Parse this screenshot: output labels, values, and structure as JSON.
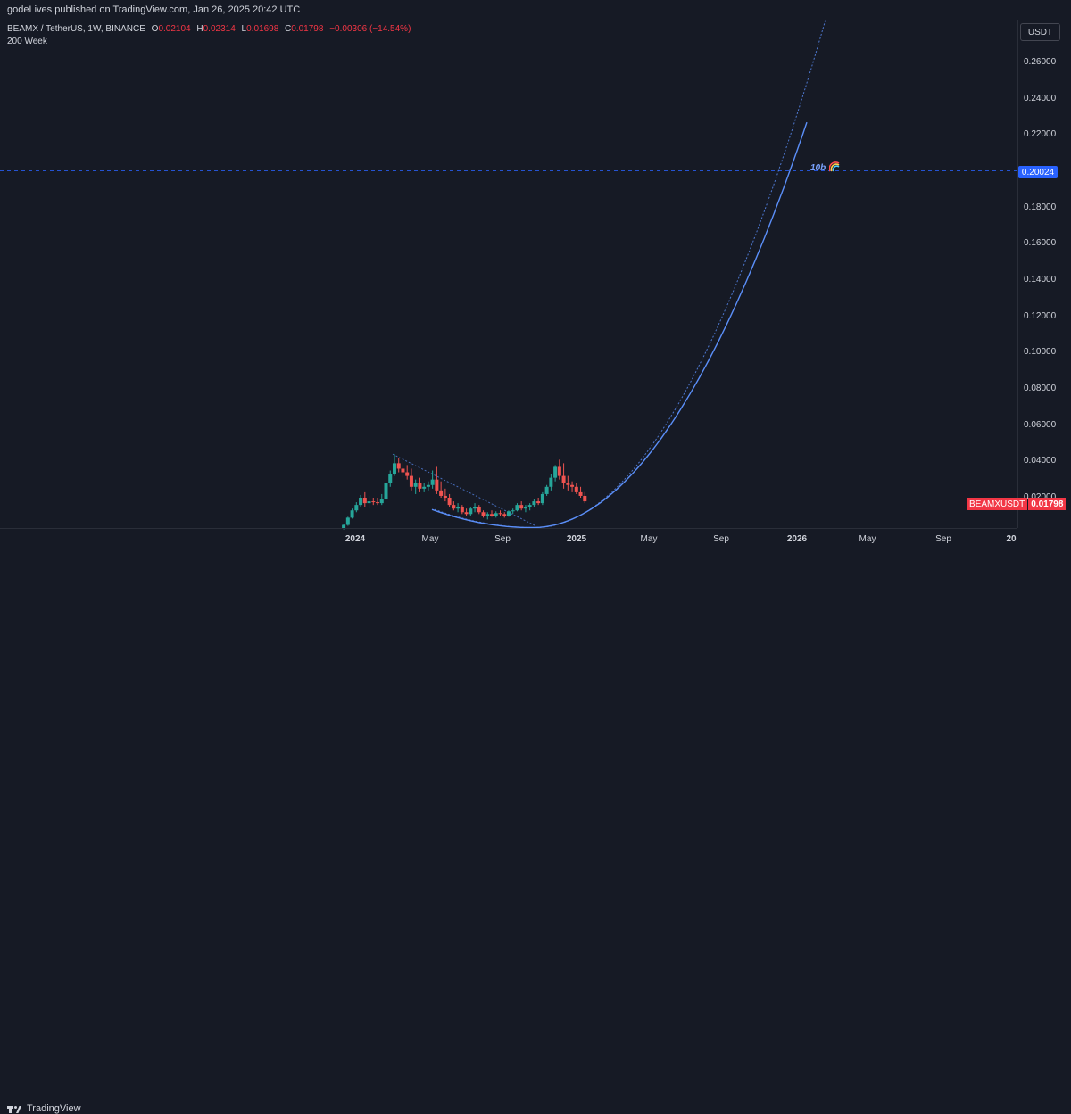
{
  "header": {
    "published": "godeLives published on TradingView.com, Jan 26, 2025 20:42 UTC"
  },
  "legend": {
    "symbol": "BEAMX / TetherUS, 1W, BINANCE",
    "open_label": "O",
    "open": "0.02104",
    "high_label": "H",
    "high": "0.02314",
    "low_label": "L",
    "low": "0.01698",
    "close_label": "C",
    "close": "0.01798",
    "change": "−0.00306 (−14.54%)",
    "indicator": "200 Week"
  },
  "axis": {
    "currency": "USDT",
    "y_ticks": [
      "0.26000",
      "0.24000",
      "0.22000",
      "0.20000",
      "0.18000",
      "0.16000",
      "0.14000",
      "0.12000",
      "0.10000",
      "0.08000",
      "0.06000",
      "0.04000",
      "0.02000"
    ],
    "x_ticks": [
      {
        "label": "2024",
        "bold": true
      },
      {
        "label": "May",
        "bold": false
      },
      {
        "label": "Sep",
        "bold": false
      },
      {
        "label": "2025",
        "bold": true
      },
      {
        "label": "May",
        "bold": false
      },
      {
        "label": "Sep",
        "bold": false
      },
      {
        "label": "2026",
        "bold": true
      },
      {
        "label": "May",
        "bold": false
      },
      {
        "label": "Sep",
        "bold": false
      },
      {
        "label": "20",
        "bold": true
      }
    ]
  },
  "annotations": {
    "target_price": "0.20024",
    "target_label": "10b",
    "target_icon": "rainbow-icon",
    "symbol_badge": "BEAMXUSDT",
    "last_price": "0.01798"
  },
  "footer": {
    "brand": "TradingView",
    "brand_icon": "tradingview-logo-icon"
  },
  "colors": {
    "up": "#26a69a",
    "down": "#ef5350",
    "curve": "#5b8ff9",
    "background": "#161a25",
    "price_line": "#2962ff"
  },
  "chart_data": {
    "type": "candlestick",
    "symbol": "BEAMXUSDT",
    "interval": "1W",
    "ylim": [
      0,
      0.28
    ],
    "last": {
      "open": 0.02104,
      "high": 0.02314,
      "low": 0.01698,
      "close": 0.01798
    },
    "horizontal_line": 0.20024,
    "candles_approx": [
      {
        "t": "2023-12-10",
        "o": 0.003,
        "h": 0.0055,
        "l": 0.0025,
        "c": 0.005
      },
      {
        "t": "2023-12-17",
        "o": 0.005,
        "h": 0.0095,
        "l": 0.0045,
        "c": 0.009
      },
      {
        "t": "2023-12-24",
        "o": 0.009,
        "h": 0.014,
        "l": 0.0085,
        "c": 0.013
      },
      {
        "t": "2023-12-31",
        "o": 0.013,
        "h": 0.0175,
        "l": 0.012,
        "c": 0.016
      },
      {
        "t": "2024-01-07",
        "o": 0.016,
        "h": 0.0215,
        "l": 0.015,
        "c": 0.02
      },
      {
        "t": "2024-01-14",
        "o": 0.02,
        "h": 0.023,
        "l": 0.015,
        "c": 0.017
      },
      {
        "t": "2024-01-21",
        "o": 0.017,
        "h": 0.021,
        "l": 0.014,
        "c": 0.018
      },
      {
        "t": "2024-01-28",
        "o": 0.018,
        "h": 0.02,
        "l": 0.016,
        "c": 0.0175
      },
      {
        "t": "2024-02-04",
        "o": 0.0175,
        "h": 0.02,
        "l": 0.016,
        "c": 0.017
      },
      {
        "t": "2024-02-11",
        "o": 0.017,
        "h": 0.022,
        "l": 0.016,
        "c": 0.019
      },
      {
        "t": "2024-02-18",
        "o": 0.019,
        "h": 0.03,
        "l": 0.018,
        "c": 0.028
      },
      {
        "t": "2024-02-25",
        "o": 0.028,
        "h": 0.035,
        "l": 0.026,
        "c": 0.033
      },
      {
        "t": "2024-03-03",
        "o": 0.033,
        "h": 0.044,
        "l": 0.032,
        "c": 0.039
      },
      {
        "t": "2024-03-10",
        "o": 0.039,
        "h": 0.042,
        "l": 0.034,
        "c": 0.036
      },
      {
        "t": "2024-03-17",
        "o": 0.036,
        "h": 0.04,
        "l": 0.031,
        "c": 0.034
      },
      {
        "t": "2024-03-24",
        "o": 0.034,
        "h": 0.038,
        "l": 0.03,
        "c": 0.032
      },
      {
        "t": "2024-03-31",
        "o": 0.032,
        "h": 0.036,
        "l": 0.024,
        "c": 0.026
      },
      {
        "t": "2024-04-07",
        "o": 0.026,
        "h": 0.03,
        "l": 0.022,
        "c": 0.028
      },
      {
        "t": "2024-04-14",
        "o": 0.028,
        "h": 0.031,
        "l": 0.023,
        "c": 0.025
      },
      {
        "t": "2024-04-21",
        "o": 0.025,
        "h": 0.028,
        "l": 0.023,
        "c": 0.026
      },
      {
        "t": "2024-04-28",
        "o": 0.026,
        "h": 0.029,
        "l": 0.024,
        "c": 0.027
      },
      {
        "t": "2024-05-05",
        "o": 0.027,
        "h": 0.035,
        "l": 0.025,
        "c": 0.03
      },
      {
        "t": "2024-05-12",
        "o": 0.03,
        "h": 0.037,
        "l": 0.022,
        "c": 0.024
      },
      {
        "t": "2024-05-19",
        "o": 0.024,
        "h": 0.029,
        "l": 0.02,
        "c": 0.021
      },
      {
        "t": "2024-05-26",
        "o": 0.021,
        "h": 0.025,
        "l": 0.018,
        "c": 0.02
      },
      {
        "t": "2024-06-02",
        "o": 0.02,
        "h": 0.022,
        "l": 0.015,
        "c": 0.016
      },
      {
        "t": "2024-06-09",
        "o": 0.016,
        "h": 0.018,
        "l": 0.013,
        "c": 0.014
      },
      {
        "t": "2024-06-16",
        "o": 0.014,
        "h": 0.017,
        "l": 0.012,
        "c": 0.015
      },
      {
        "t": "2024-06-23",
        "o": 0.015,
        "h": 0.016,
        "l": 0.011,
        "c": 0.012
      },
      {
        "t": "2024-06-30",
        "o": 0.012,
        "h": 0.014,
        "l": 0.01,
        "c": 0.011
      },
      {
        "t": "2024-07-07",
        "o": 0.011,
        "h": 0.015,
        "l": 0.01,
        "c": 0.014
      },
      {
        "t": "2024-07-14",
        "o": 0.014,
        "h": 0.017,
        "l": 0.012,
        "c": 0.015
      },
      {
        "t": "2024-07-21",
        "o": 0.015,
        "h": 0.016,
        "l": 0.011,
        "c": 0.012
      },
      {
        "t": "2024-07-28",
        "o": 0.012,
        "h": 0.013,
        "l": 0.009,
        "c": 0.01
      },
      {
        "t": "2024-08-04",
        "o": 0.01,
        "h": 0.012,
        "l": 0.008,
        "c": 0.011
      },
      {
        "t": "2024-08-11",
        "o": 0.011,
        "h": 0.013,
        "l": 0.0095,
        "c": 0.01
      },
      {
        "t": "2024-08-18",
        "o": 0.01,
        "h": 0.0125,
        "l": 0.009,
        "c": 0.0115
      },
      {
        "t": "2024-08-25",
        "o": 0.0115,
        "h": 0.013,
        "l": 0.01,
        "c": 0.011
      },
      {
        "t": "2024-09-01",
        "o": 0.011,
        "h": 0.012,
        "l": 0.009,
        "c": 0.01
      },
      {
        "t": "2024-09-08",
        "o": 0.01,
        "h": 0.013,
        "l": 0.0095,
        "c": 0.0125
      },
      {
        "t": "2024-09-15",
        "o": 0.0125,
        "h": 0.014,
        "l": 0.011,
        "c": 0.013
      },
      {
        "t": "2024-09-22",
        "o": 0.013,
        "h": 0.017,
        "l": 0.0125,
        "c": 0.016
      },
      {
        "t": "2024-09-29",
        "o": 0.016,
        "h": 0.018,
        "l": 0.013,
        "c": 0.014
      },
      {
        "t": "2024-10-06",
        "o": 0.014,
        "h": 0.016,
        "l": 0.012,
        "c": 0.015
      },
      {
        "t": "2024-10-13",
        "o": 0.015,
        "h": 0.017,
        "l": 0.013,
        "c": 0.016
      },
      {
        "t": "2024-10-20",
        "o": 0.016,
        "h": 0.019,
        "l": 0.015,
        "c": 0.018
      },
      {
        "t": "2024-10-27",
        "o": 0.018,
        "h": 0.02,
        "l": 0.016,
        "c": 0.017
      },
      {
        "t": "2024-11-03",
        "o": 0.017,
        "h": 0.023,
        "l": 0.016,
        "c": 0.022
      },
      {
        "t": "2024-11-10",
        "o": 0.022,
        "h": 0.027,
        "l": 0.021,
        "c": 0.026
      },
      {
        "t": "2024-11-17",
        "o": 0.026,
        "h": 0.033,
        "l": 0.024,
        "c": 0.031
      },
      {
        "t": "2024-11-24",
        "o": 0.031,
        "h": 0.038,
        "l": 0.029,
        "c": 0.037
      },
      {
        "t": "2024-12-01",
        "o": 0.037,
        "h": 0.041,
        "l": 0.03,
        "c": 0.032
      },
      {
        "t": "2024-12-08",
        "o": 0.032,
        "h": 0.039,
        "l": 0.025,
        "c": 0.028
      },
      {
        "t": "2024-12-15",
        "o": 0.028,
        "h": 0.032,
        "l": 0.024,
        "c": 0.027
      },
      {
        "t": "2024-12-22",
        "o": 0.027,
        "h": 0.029,
        "l": 0.023,
        "c": 0.026
      },
      {
        "t": "2024-12-29",
        "o": 0.026,
        "h": 0.028,
        "l": 0.022,
        "c": 0.023
      },
      {
        "t": "2025-01-05",
        "o": 0.023,
        "h": 0.026,
        "l": 0.02,
        "c": 0.021
      },
      {
        "t": "2025-01-12",
        "o": 0.021,
        "h": 0.0231,
        "l": 0.017,
        "c": 0.018
      }
    ]
  }
}
